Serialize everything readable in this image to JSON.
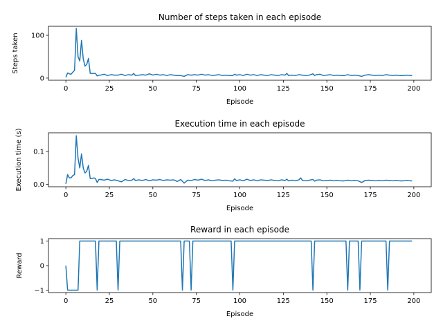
{
  "colors": {
    "series": "#1f77b4",
    "axes": "#000000",
    "background": "#ffffff"
  },
  "chart_data": [
    {
      "type": "line",
      "title": "Number of steps taken in each episode",
      "xlabel": "Episode",
      "ylabel": "Steps taken",
      "xlim": [
        -10,
        210
      ],
      "ylim": [
        -5,
        121
      ],
      "xticks": [
        0,
        25,
        50,
        75,
        100,
        125,
        150,
        175,
        200
      ],
      "yticks": [
        0,
        100
      ],
      "grid": false,
      "series": [
        {
          "values": [
            [
              0,
              2
            ],
            [
              1,
              12
            ],
            [
              2,
              10
            ],
            [
              3,
              9
            ],
            [
              4,
              14
            ],
            [
              5,
              18
            ],
            [
              6,
              116
            ],
            [
              7,
              50
            ],
            [
              8,
              40
            ],
            [
              9,
              88
            ],
            [
              10,
              45
            ],
            [
              11,
              28
            ],
            [
              12,
              32
            ],
            [
              13,
              46
            ],
            [
              14,
              11
            ],
            [
              15,
              11
            ],
            [
              16,
              11
            ],
            [
              17,
              11
            ],
            [
              18,
              5
            ],
            [
              19,
              7
            ],
            [
              20,
              7
            ],
            [
              22,
              9
            ],
            [
              24,
              6
            ],
            [
              26,
              8
            ],
            [
              28,
              7
            ],
            [
              30,
              7
            ],
            [
              32,
              9
            ],
            [
              34,
              6
            ],
            [
              36,
              8
            ],
            [
              38,
              7
            ],
            [
              39,
              11
            ],
            [
              40,
              6
            ],
            [
              42,
              7
            ],
            [
              44,
              8
            ],
            [
              46,
              7
            ],
            [
              48,
              10
            ],
            [
              50,
              7
            ],
            [
              52,
              9
            ],
            [
              54,
              7
            ],
            [
              56,
              8
            ],
            [
              58,
              6
            ],
            [
              60,
              8
            ],
            [
              62,
              7
            ],
            [
              64,
              6
            ],
            [
              66,
              6
            ],
            [
              68,
              4
            ],
            [
              70,
              8
            ],
            [
              72,
              7
            ],
            [
              74,
              8
            ],
            [
              76,
              7
            ],
            [
              78,
              9
            ],
            [
              80,
              7
            ],
            [
              82,
              8
            ],
            [
              84,
              6
            ],
            [
              86,
              7
            ],
            [
              88,
              8
            ],
            [
              90,
              6
            ],
            [
              92,
              7
            ],
            [
              94,
              6
            ],
            [
              96,
              6
            ],
            [
              97,
              9
            ],
            [
              98,
              7
            ],
            [
              100,
              8
            ],
            [
              102,
              6
            ],
            [
              104,
              9
            ],
            [
              106,
              7
            ],
            [
              108,
              8
            ],
            [
              110,
              6
            ],
            [
              112,
              8
            ],
            [
              114,
              7
            ],
            [
              116,
              6
            ],
            [
              118,
              8
            ],
            [
              120,
              7
            ],
            [
              122,
              6
            ],
            [
              124,
              8
            ],
            [
              126,
              7
            ],
            [
              127,
              11
            ],
            [
              128,
              6
            ],
            [
              130,
              7
            ],
            [
              132,
              6
            ],
            [
              134,
              8
            ],
            [
              136,
              7
            ],
            [
              138,
              6
            ],
            [
              140,
              7
            ],
            [
              142,
              10
            ],
            [
              143,
              6
            ],
            [
              144,
              8
            ],
            [
              146,
              9
            ],
            [
              148,
              6
            ],
            [
              150,
              7
            ],
            [
              152,
              8
            ],
            [
              154,
              6
            ],
            [
              156,
              7
            ],
            [
              158,
              6
            ],
            [
              160,
              6
            ],
            [
              162,
              8
            ],
            [
              164,
              6
            ],
            [
              166,
              7
            ],
            [
              168,
              6
            ],
            [
              170,
              4
            ],
            [
              172,
              7
            ],
            [
              174,
              8
            ],
            [
              176,
              7
            ],
            [
              178,
              6
            ],
            [
              180,
              7
            ],
            [
              182,
              6
            ],
            [
              184,
              8
            ],
            [
              186,
              7
            ],
            [
              188,
              6
            ],
            [
              190,
              7
            ],
            [
              192,
              6
            ],
            [
              194,
              6
            ],
            [
              196,
              7
            ],
            [
              198,
              6
            ],
            [
              199,
              6
            ]
          ]
        }
      ]
    },
    {
      "type": "line",
      "title": "Execution time in each episode",
      "xlabel": "Episode",
      "ylabel": "Execution time (s)",
      "xlim": [
        -10,
        210
      ],
      "ylim": [
        -0.007,
        0.157
      ],
      "xticks": [
        0,
        25,
        50,
        75,
        100,
        125,
        150,
        175,
        200
      ],
      "yticks": [
        0.0,
        0.1
      ],
      "ytick_labels": [
        "0.0",
        "0.1"
      ],
      "grid": false,
      "series": [
        {
          "values": [
            [
              0,
              0.002
            ],
            [
              1,
              0.03
            ],
            [
              2,
              0.02
            ],
            [
              3,
              0.02
            ],
            [
              4,
              0.027
            ],
            [
              5,
              0.03
            ],
            [
              6,
              0.148
            ],
            [
              7,
              0.08
            ],
            [
              8,
              0.05
            ],
            [
              9,
              0.093
            ],
            [
              10,
              0.05
            ],
            [
              11,
              0.035
            ],
            [
              12,
              0.04
            ],
            [
              13,
              0.058
            ],
            [
              14,
              0.018
            ],
            [
              15,
              0.018
            ],
            [
              16,
              0.02
            ],
            [
              17,
              0.018
            ],
            [
              18,
              0.006
            ],
            [
              19,
              0.015
            ],
            [
              20,
              0.015
            ],
            [
              22,
              0.013
            ],
            [
              24,
              0.016
            ],
            [
              26,
              0.012
            ],
            [
              28,
              0.014
            ],
            [
              30,
              0.011
            ],
            [
              32,
              0.008
            ],
            [
              34,
              0.015
            ],
            [
              36,
              0.012
            ],
            [
              38,
              0.013
            ],
            [
              39,
              0.018
            ],
            [
              40,
              0.012
            ],
            [
              42,
              0.014
            ],
            [
              44,
              0.012
            ],
            [
              46,
              0.015
            ],
            [
              48,
              0.011
            ],
            [
              50,
              0.014
            ],
            [
              52,
              0.013
            ],
            [
              54,
              0.015
            ],
            [
              56,
              0.012
            ],
            [
              58,
              0.014
            ],
            [
              60,
              0.013
            ],
            [
              62,
              0.014
            ],
            [
              64,
              0.009
            ],
            [
              66,
              0.015
            ],
            [
              68,
              0.004
            ],
            [
              70,
              0.013
            ],
            [
              72,
              0.012
            ],
            [
              74,
              0.015
            ],
            [
              76,
              0.013
            ],
            [
              78,
              0.016
            ],
            [
              80,
              0.012
            ],
            [
              82,
              0.014
            ],
            [
              84,
              0.011
            ],
            [
              86,
              0.013
            ],
            [
              88,
              0.014
            ],
            [
              90,
              0.012
            ],
            [
              92,
              0.013
            ],
            [
              94,
              0.011
            ],
            [
              96,
              0.01
            ],
            [
              97,
              0.017
            ],
            [
              98,
              0.012
            ],
            [
              100,
              0.014
            ],
            [
              102,
              0.011
            ],
            [
              104,
              0.016
            ],
            [
              106,
              0.012
            ],
            [
              108,
              0.014
            ],
            [
              110,
              0.011
            ],
            [
              112,
              0.014
            ],
            [
              114,
              0.013
            ],
            [
              116,
              0.012
            ],
            [
              118,
              0.014
            ],
            [
              120,
              0.012
            ],
            [
              122,
              0.011
            ],
            [
              124,
              0.014
            ],
            [
              126,
              0.012
            ],
            [
              127,
              0.016
            ],
            [
              128,
              0.011
            ],
            [
              130,
              0.013
            ],
            [
              132,
              0.011
            ],
            [
              134,
              0.014
            ],
            [
              135,
              0.02
            ],
            [
              136,
              0.012
            ],
            [
              138,
              0.011
            ],
            [
              140,
              0.013
            ],
            [
              142,
              0.015
            ],
            [
              143,
              0.01
            ],
            [
              144,
              0.013
            ],
            [
              146,
              0.014
            ],
            [
              148,
              0.011
            ],
            [
              150,
              0.012
            ],
            [
              152,
              0.013
            ],
            [
              154,
              0.011
            ],
            [
              156,
              0.012
            ],
            [
              158,
              0.011
            ],
            [
              160,
              0.011
            ],
            [
              162,
              0.013
            ],
            [
              164,
              0.011
            ],
            [
              166,
              0.012
            ],
            [
              168,
              0.011
            ],
            [
              170,
              0.006
            ],
            [
              172,
              0.012
            ],
            [
              174,
              0.013
            ],
            [
              176,
              0.012
            ],
            [
              178,
              0.011
            ],
            [
              180,
              0.012
            ],
            [
              182,
              0.011
            ],
            [
              184,
              0.013
            ],
            [
              186,
              0.012
            ],
            [
              188,
              0.011
            ],
            [
              190,
              0.012
            ],
            [
              192,
              0.011
            ],
            [
              194,
              0.011
            ],
            [
              196,
              0.012
            ],
            [
              198,
              0.011
            ],
            [
              199,
              0.011
            ]
          ]
        }
      ]
    },
    {
      "type": "line",
      "title": "Reward in each episode",
      "xlabel": "Episode",
      "ylabel": "Reward",
      "xlim": [
        -10,
        210
      ],
      "ylim": [
        -1.1,
        1.1
      ],
      "xticks": [
        0,
        25,
        50,
        75,
        100,
        125,
        150,
        175,
        200
      ],
      "yticks": [
        -1,
        0,
        1
      ],
      "ytick_labels": [
        "−1",
        "0",
        "1"
      ],
      "grid": false,
      "series": [
        {
          "values": [
            [
              0,
              0
            ],
            [
              1,
              -1
            ],
            [
              7,
              -1
            ],
            [
              8,
              1
            ],
            [
              17,
              1
            ],
            [
              18,
              -1
            ],
            [
              19,
              1
            ],
            [
              29,
              1
            ],
            [
              30,
              -1
            ],
            [
              31,
              1
            ],
            [
              66,
              1
            ],
            [
              67,
              -1
            ],
            [
              68,
              1
            ],
            [
              71,
              1
            ],
            [
              72,
              -1
            ],
            [
              73,
              1
            ],
            [
              95,
              1
            ],
            [
              96,
              -1
            ],
            [
              97,
              1
            ],
            [
              141,
              1
            ],
            [
              142,
              -1
            ],
            [
              143,
              1
            ],
            [
              161,
              1
            ],
            [
              162,
              -1
            ],
            [
              163,
              1
            ],
            [
              168,
              1
            ],
            [
              169,
              -1
            ],
            [
              170,
              1
            ],
            [
              184,
              1
            ],
            [
              185,
              -1
            ],
            [
              186,
              1
            ],
            [
              199,
              1
            ]
          ]
        }
      ]
    }
  ]
}
